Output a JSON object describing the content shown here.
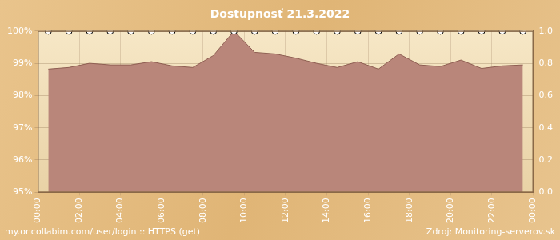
{
  "chart_data": {
    "type": "line",
    "title": "Dostupnosť 21.3.2022",
    "x": [
      0.5,
      1.5,
      2.5,
      3.5,
      4.5,
      5.5,
      6.5,
      7.5,
      8.5,
      9.5,
      10.5,
      11.5,
      12.5,
      13.5,
      14.5,
      15.5,
      16.5,
      17.5,
      18.5,
      19.5,
      20.5,
      21.5,
      22.5,
      23.5
    ],
    "xlim": [
      0,
      24
    ],
    "xticks": [
      {
        "value": 0,
        "label": "00:00"
      },
      {
        "value": 2,
        "label": "02:00"
      },
      {
        "value": 4,
        "label": "04:00"
      },
      {
        "value": 6,
        "label": "06:00"
      },
      {
        "value": 8,
        "label": "08:00"
      },
      {
        "value": 10,
        "label": "10:00"
      },
      {
        "value": 12,
        "label": "12:00"
      },
      {
        "value": 14,
        "label": "14:00"
      },
      {
        "value": 16,
        "label": "16:00"
      },
      {
        "value": 18,
        "label": "18:00"
      },
      {
        "value": 20,
        "label": "20:00"
      },
      {
        "value": 22,
        "label": "22:00"
      },
      {
        "value": 24,
        "label": "00:00"
      }
    ],
    "ylim": [
      95,
      100
    ],
    "yticks": [
      {
        "value": 95,
        "label": "95%"
      },
      {
        "value": 96,
        "label": "96%"
      },
      {
        "value": 97,
        "label": "97%"
      },
      {
        "value": 98,
        "label": "98%"
      },
      {
        "value": 99,
        "label": "99%"
      },
      {
        "value": 100,
        "label": "100%"
      }
    ],
    "y2lim": [
      0,
      1
    ],
    "y2ticks": [
      {
        "value": 0,
        "label": "0.0"
      },
      0.2,
      0.4,
      0.6,
      0.8,
      {
        "value": 1,
        "label": "1.0"
      }
    ],
    "series": [
      {
        "type": "area",
        "color": "#b9867a",
        "values": [
          98.82,
          98.87,
          99.0,
          98.95,
          98.95,
          99.05,
          98.92,
          98.87,
          99.24,
          100.0,
          99.34,
          99.29,
          99.16,
          99.0,
          98.87,
          99.05,
          98.82,
          99.29,
          98.95,
          98.9,
          99.1,
          98.84,
          98.92,
          98.95
        ]
      },
      {
        "type": "line",
        "axis": "y2",
        "color": "#000000",
        "marker": "circle",
        "values": [
          1,
          1,
          1,
          1,
          1,
          1,
          1,
          1,
          1,
          1,
          1,
          1,
          1,
          1,
          1,
          1,
          1,
          1,
          1,
          1,
          1,
          1,
          1,
          1
        ]
      }
    ],
    "grid": true,
    "annotations": [
      "my.oncollabim.com/user/login :: HTTPS (get)",
      "Zdroj: Monitoring-serverov.sk"
    ]
  }
}
